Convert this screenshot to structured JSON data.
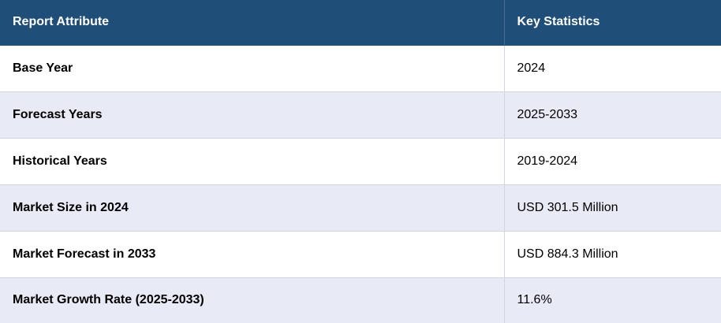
{
  "table": {
    "headers": [
      "Report Attribute",
      "Key Statistics"
    ],
    "rows": [
      {
        "attribute": "Base Year",
        "value": "2024"
      },
      {
        "attribute": "Forecast Years",
        "value": "2025-2033"
      },
      {
        "attribute": "Historical Years",
        "value": "2019-2024"
      },
      {
        "attribute": "Market Size in 2024",
        "value": "USD 301.5 Million"
      },
      {
        "attribute": "Market Forecast in 2033",
        "value": "USD 884.3 Million"
      },
      {
        "attribute": "Market Growth Rate (2025-2033)",
        "value": "11.6%"
      }
    ]
  },
  "colors": {
    "header_bg": "#1f4e79",
    "header_text": "#ffffff",
    "row_alt_bg": "#e8eaf6",
    "row_bg": "#ffffff"
  }
}
